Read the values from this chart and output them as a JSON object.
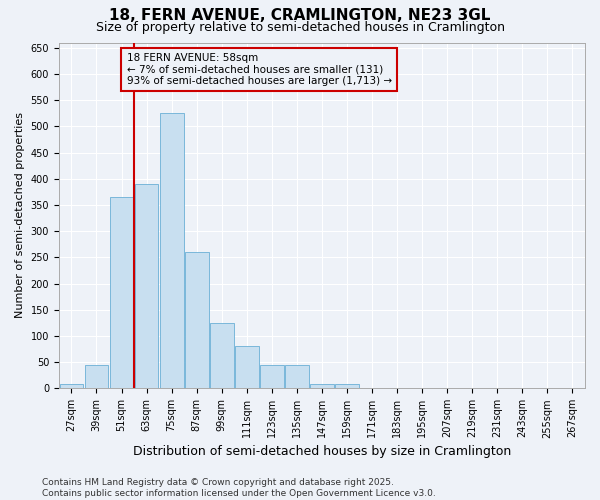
{
  "title": "18, FERN AVENUE, CRAMLINGTON, NE23 3GL",
  "subtitle": "Size of property relative to semi-detached houses in Cramlington",
  "xlabel": "Distribution of semi-detached houses by size in Cramlington",
  "ylabel": "Number of semi-detached properties",
  "footer_line1": "Contains HM Land Registry data © Crown copyright and database right 2025.",
  "footer_line2": "Contains public sector information licensed under the Open Government Licence v3.0.",
  "categories": [
    "27sqm",
    "39sqm",
    "51sqm",
    "63sqm",
    "75sqm",
    "87sqm",
    "99sqm",
    "111sqm",
    "123sqm",
    "135sqm",
    "147sqm",
    "159sqm",
    "171sqm",
    "183sqm",
    "195sqm",
    "207sqm",
    "219sqm",
    "231sqm",
    "243sqm",
    "255sqm",
    "267sqm"
  ],
  "values": [
    8,
    45,
    365,
    390,
    525,
    260,
    125,
    80,
    45,
    45,
    8,
    8,
    0,
    0,
    0,
    0,
    0,
    0,
    0,
    0,
    0
  ],
  "bar_color": "#c8dff0",
  "bar_edge_color": "#6aafd6",
  "vline_x": 2.5,
  "vline_color": "#cc0000",
  "annotation_text": "18 FERN AVENUE: 58sqm\n← 7% of semi-detached houses are smaller (131)\n93% of semi-detached houses are larger (1,713) →",
  "annotation_box_color": "#cc0000",
  "ylim": [
    0,
    660
  ],
  "yticks": [
    0,
    50,
    100,
    150,
    200,
    250,
    300,
    350,
    400,
    450,
    500,
    550,
    600,
    650
  ],
  "background_color": "#eef2f8",
  "grid_color": "#ffffff",
  "title_fontsize": 11,
  "subtitle_fontsize": 9,
  "xlabel_fontsize": 9,
  "ylabel_fontsize": 8,
  "tick_fontsize": 7,
  "annotation_fontsize": 7.5,
  "footer_fontsize": 6.5
}
